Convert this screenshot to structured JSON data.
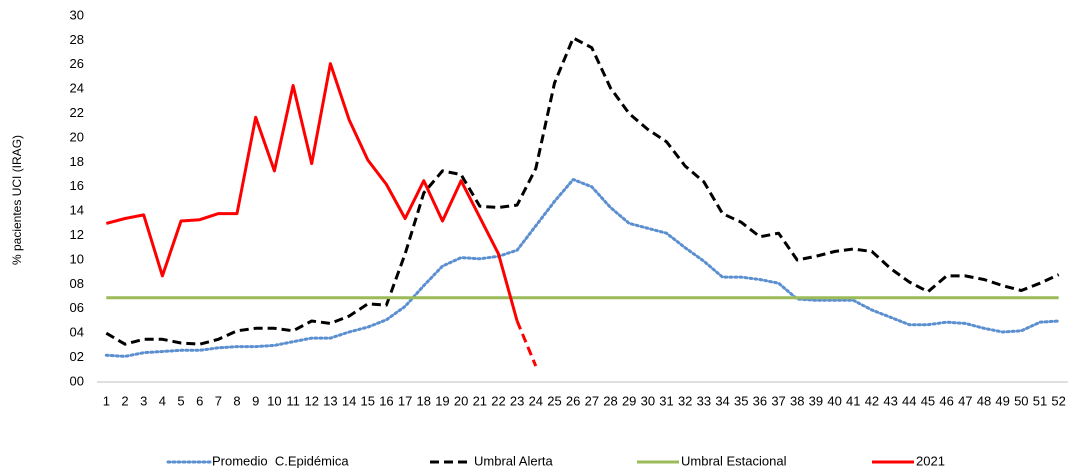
{
  "chart_data": {
    "type": "line",
    "y_label": "% pacientes UCI (IRAG)",
    "categories": [
      "1",
      "2",
      "3",
      "4",
      "5",
      "6",
      "7",
      "8",
      "9",
      "10",
      "11",
      "12",
      "13",
      "14",
      "15",
      "16",
      "17",
      "18",
      "19",
      "20",
      "21",
      "22",
      "23",
      "24",
      "25",
      "26",
      "27",
      "28",
      "29",
      "30",
      "31",
      "32",
      "33",
      "34",
      "35",
      "36",
      "37",
      "38",
      "39",
      "40",
      "41",
      "42",
      "43",
      "44",
      "45",
      "46",
      "47",
      "48",
      "49",
      "50",
      "51",
      "52"
    ],
    "ylim": [
      0,
      30
    ],
    "yticks": [
      {
        "value": 0,
        "label": "00"
      },
      {
        "value": 2,
        "label": "02"
      },
      {
        "value": 4,
        "label": "04"
      },
      {
        "value": 6,
        "label": "06"
      },
      {
        "value": 8,
        "label": "08"
      },
      10,
      12,
      14,
      16,
      18,
      20,
      22,
      24,
      26,
      28,
      30
    ],
    "grid": false,
    "legend": "bottom",
    "series": [
      {
        "name": "Promedio  C.Epidémica",
        "color": "#5b8fd0",
        "line_style": "dotted",
        "values": [
          2.2,
          2.1,
          2.4,
          2.5,
          2.6,
          2.6,
          2.8,
          2.9,
          2.9,
          3.0,
          3.3,
          3.6,
          3.6,
          4.1,
          4.5,
          5.1,
          6.2,
          7.9,
          9.5,
          10.2,
          10.1,
          10.3,
          10.8,
          12.8,
          14.8,
          16.6,
          16.0,
          14.3,
          13.0,
          12.6,
          12.2,
          11.0,
          9.9,
          8.6,
          8.6,
          8.4,
          8.1,
          6.8,
          6.7,
          6.7,
          6.7,
          5.9,
          5.3,
          4.7,
          4.7,
          4.9,
          4.8,
          4.4,
          4.1,
          4.2,
          4.9,
          5.0
        ]
      },
      {
        "name": "Umbral Alerta",
        "color": "#000000",
        "line_style": "dashed",
        "values": [
          4.0,
          3.1,
          3.5,
          3.5,
          3.2,
          3.1,
          3.5,
          4.2,
          4.4,
          4.4,
          4.2,
          5.0,
          4.8,
          5.4,
          6.4,
          6.3,
          10.5,
          15.5,
          17.3,
          17.0,
          14.4,
          14.3,
          14.5,
          17.5,
          24.5,
          28.2,
          27.4,
          24.1,
          22.0,
          20.7,
          19.7,
          17.7,
          16.4,
          13.8,
          13.1,
          11.9,
          12.2,
          10.0,
          10.3,
          10.7,
          10.9,
          10.7,
          9.3,
          8.2,
          7.4,
          8.7,
          8.7,
          8.4,
          7.9,
          7.5,
          8.1,
          8.8
        ]
      },
      {
        "name": "Umbral Estacional",
        "color": "#9bbb59",
        "line_style": "solid",
        "values": [
          6.9,
          6.9,
          6.9,
          6.9,
          6.9,
          6.9,
          6.9,
          6.9,
          6.9,
          6.9,
          6.9,
          6.9,
          6.9,
          6.9,
          6.9,
          6.9,
          6.9,
          6.9,
          6.9,
          6.9,
          6.9,
          6.9,
          6.9,
          6.9,
          6.9,
          6.9,
          6.9,
          6.9,
          6.9,
          6.9,
          6.9,
          6.9,
          6.9,
          6.9,
          6.9,
          6.9,
          6.9,
          6.9,
          6.9,
          6.9,
          6.9,
          6.9,
          6.9,
          6.9,
          6.9,
          6.9,
          6.9,
          6.9,
          6.9,
          6.9,
          6.9,
          6.9
        ]
      },
      {
        "name": "2021",
        "color": "#ff0000",
        "line_style": "solid",
        "dashed_last_segment": true,
        "values": [
          13.0,
          13.4,
          13.7,
          8.7,
          13.2,
          13.3,
          13.8,
          13.8,
          21.7,
          17.3,
          24.3,
          17.9,
          26.1,
          21.5,
          18.2,
          16.2,
          13.4,
          16.5,
          13.2,
          16.5,
          13.5,
          10.5,
          5.0,
          1.3,
          null,
          null,
          null,
          null,
          null,
          null,
          null,
          null,
          null,
          null,
          null,
          null,
          null,
          null,
          null,
          null,
          null,
          null,
          null,
          null,
          null,
          null,
          null,
          null,
          null,
          null,
          null,
          null
        ]
      }
    ]
  }
}
